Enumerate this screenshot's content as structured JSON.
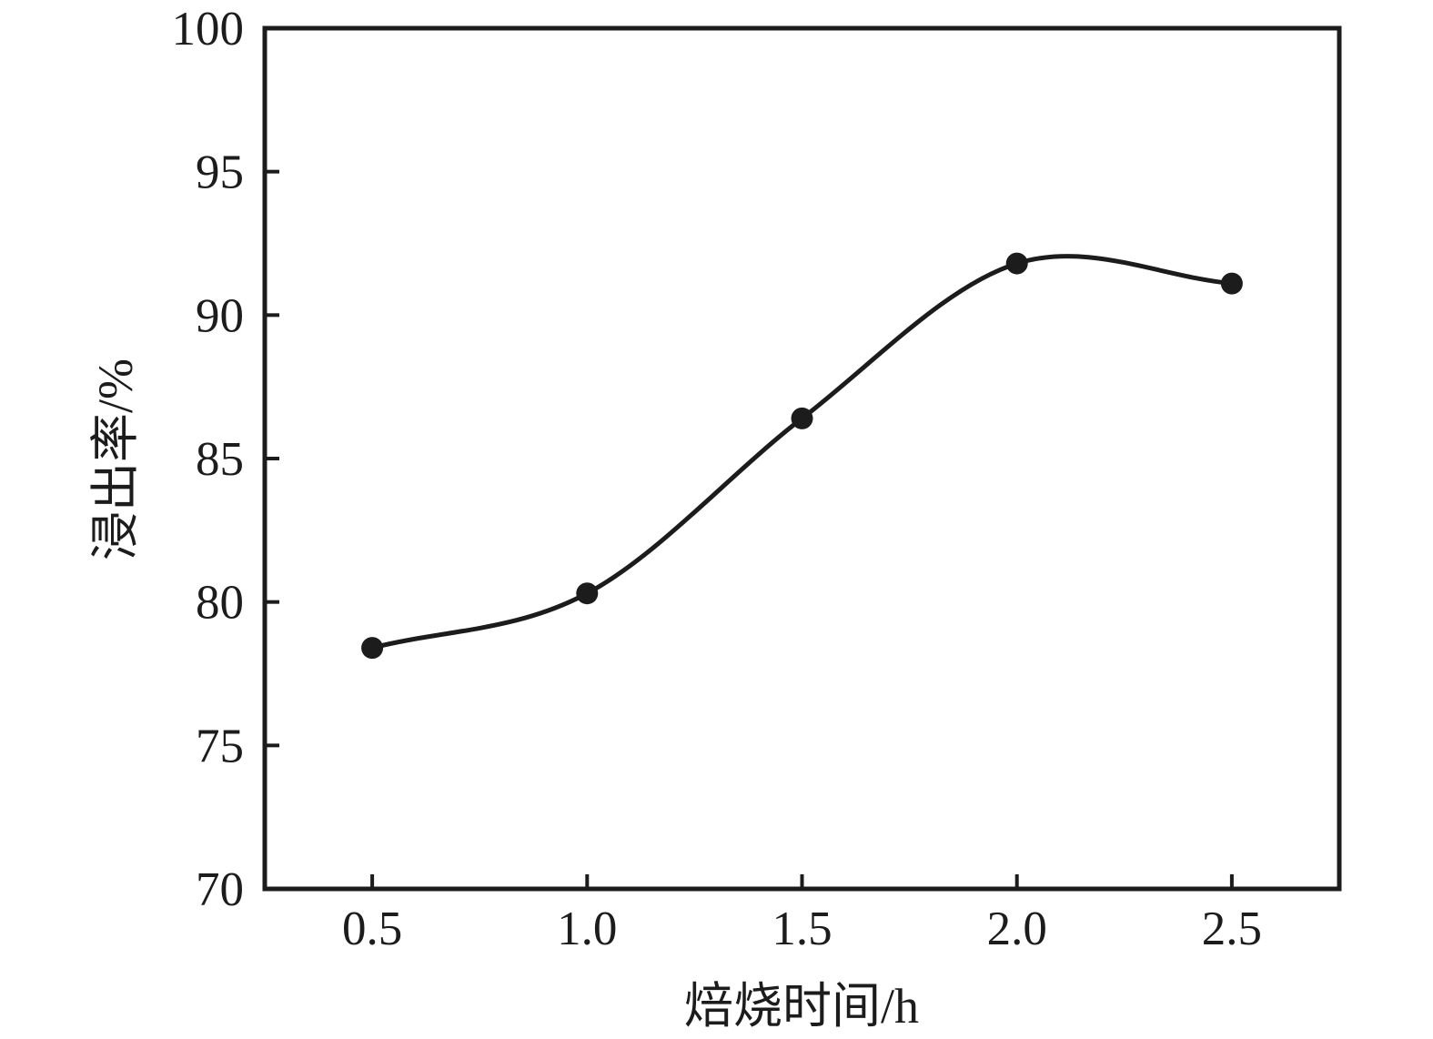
{
  "figure": {
    "background_color": "#ffffff",
    "ink_color": "#1c1c1c"
  },
  "chart_data": {
    "type": "line",
    "title": "",
    "xlabel": "焙烧时间/h",
    "ylabel": "浸出率/%",
    "x": [
      0.5,
      1.0,
      1.5,
      2.0,
      2.5
    ],
    "series": [
      {
        "name": "浸出率",
        "values": [
          78.4,
          80.3,
          86.4,
          91.8,
          91.1
        ]
      }
    ],
    "xlim": [
      0.25,
      2.75
    ],
    "ylim": [
      70,
      100
    ],
    "x_tick_values": [
      0.5,
      1.0,
      1.5,
      2.0,
      2.5
    ],
    "x_tick_labels": [
      "0.5",
      "1.0",
      "1.5",
      "2.0",
      "2.5"
    ],
    "y_tick_values": [
      70,
      75,
      80,
      85,
      90,
      95,
      100
    ],
    "y_tick_labels": [
      "70",
      "75",
      "80",
      "85",
      "90",
      "95",
      "100"
    ],
    "grid": false,
    "legend": "none",
    "marker": "filled-circle",
    "line_style": "smooth-spline"
  }
}
